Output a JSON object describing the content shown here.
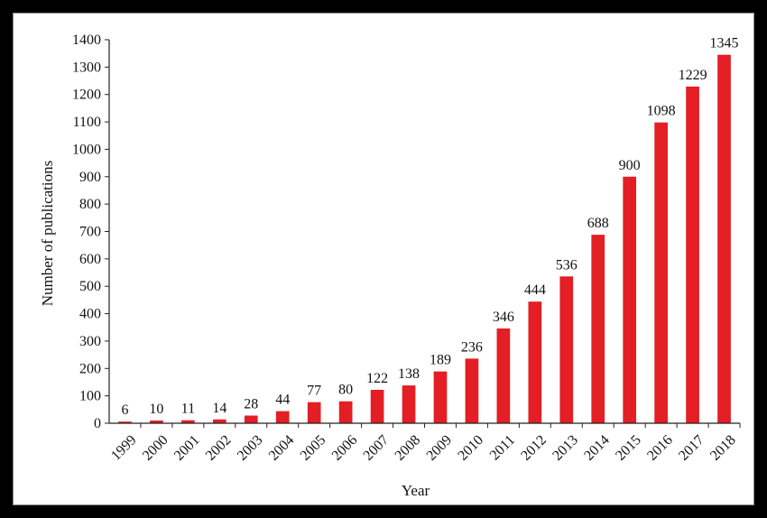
{
  "chart_data": {
    "type": "bar",
    "title": "",
    "xlabel": "Year",
    "ylabel": "Number of publications",
    "ylim": [
      0,
      1400
    ],
    "yticks": [
      0,
      100,
      200,
      300,
      400,
      500,
      600,
      700,
      800,
      900,
      1000,
      1100,
      1200,
      1300,
      1400
    ],
    "categories": [
      "1999",
      "2000",
      "2001",
      "2002",
      "2003",
      "2004",
      "2005",
      "2006",
      "2007",
      "2008",
      "2009",
      "2010",
      "2011",
      "2012",
      "2013",
      "2014",
      "2015",
      "2016",
      "2017",
      "2018"
    ],
    "values": [
      6,
      10,
      11,
      14,
      28,
      44,
      77,
      80,
      122,
      138,
      189,
      236,
      346,
      444,
      536,
      688,
      900,
      1098,
      1229,
      1345
    ],
    "bar_color": "#e31e24",
    "grid": false,
    "legend": "none"
  }
}
